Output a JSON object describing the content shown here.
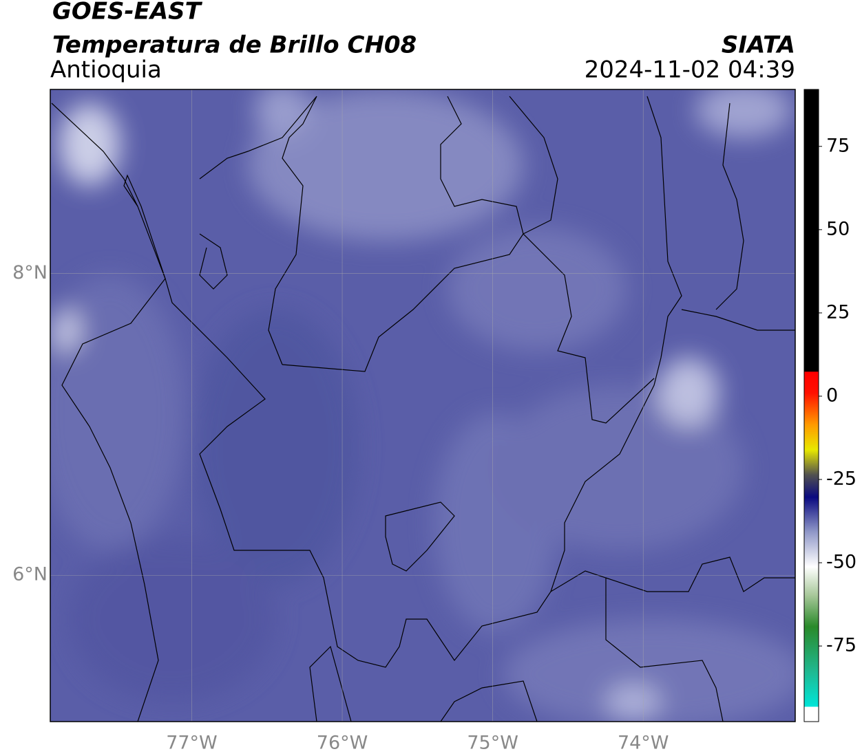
{
  "chart_data": {
    "type": "map",
    "title": "GOES-EAST",
    "subtitle": "Temperatura de Brillo CH08",
    "region": "Antioquia",
    "source": "SIATA",
    "timestamp": "2024-11-02 04:39",
    "xlim": [
      -77.94,
      -72.99
    ],
    "xticks": [
      {
        "value": -77,
        "label": "77°W"
      },
      {
        "value": -76,
        "label": "76°W"
      },
      {
        "value": -75,
        "label": "75°W"
      },
      {
        "value": -74,
        "label": "74°W"
      }
    ],
    "ylim": [
      5.03,
      9.22
    ],
    "yticks": [
      {
        "value": 6,
        "label": "6°N"
      },
      {
        "value": 8,
        "label": "8°N"
      }
    ],
    "grid": true,
    "colorbar": {
      "lim": [
        -97.7,
        92.1
      ],
      "ticks": [
        -75,
        -50,
        -25,
        0,
        25,
        50,
        75
      ]
    }
  }
}
